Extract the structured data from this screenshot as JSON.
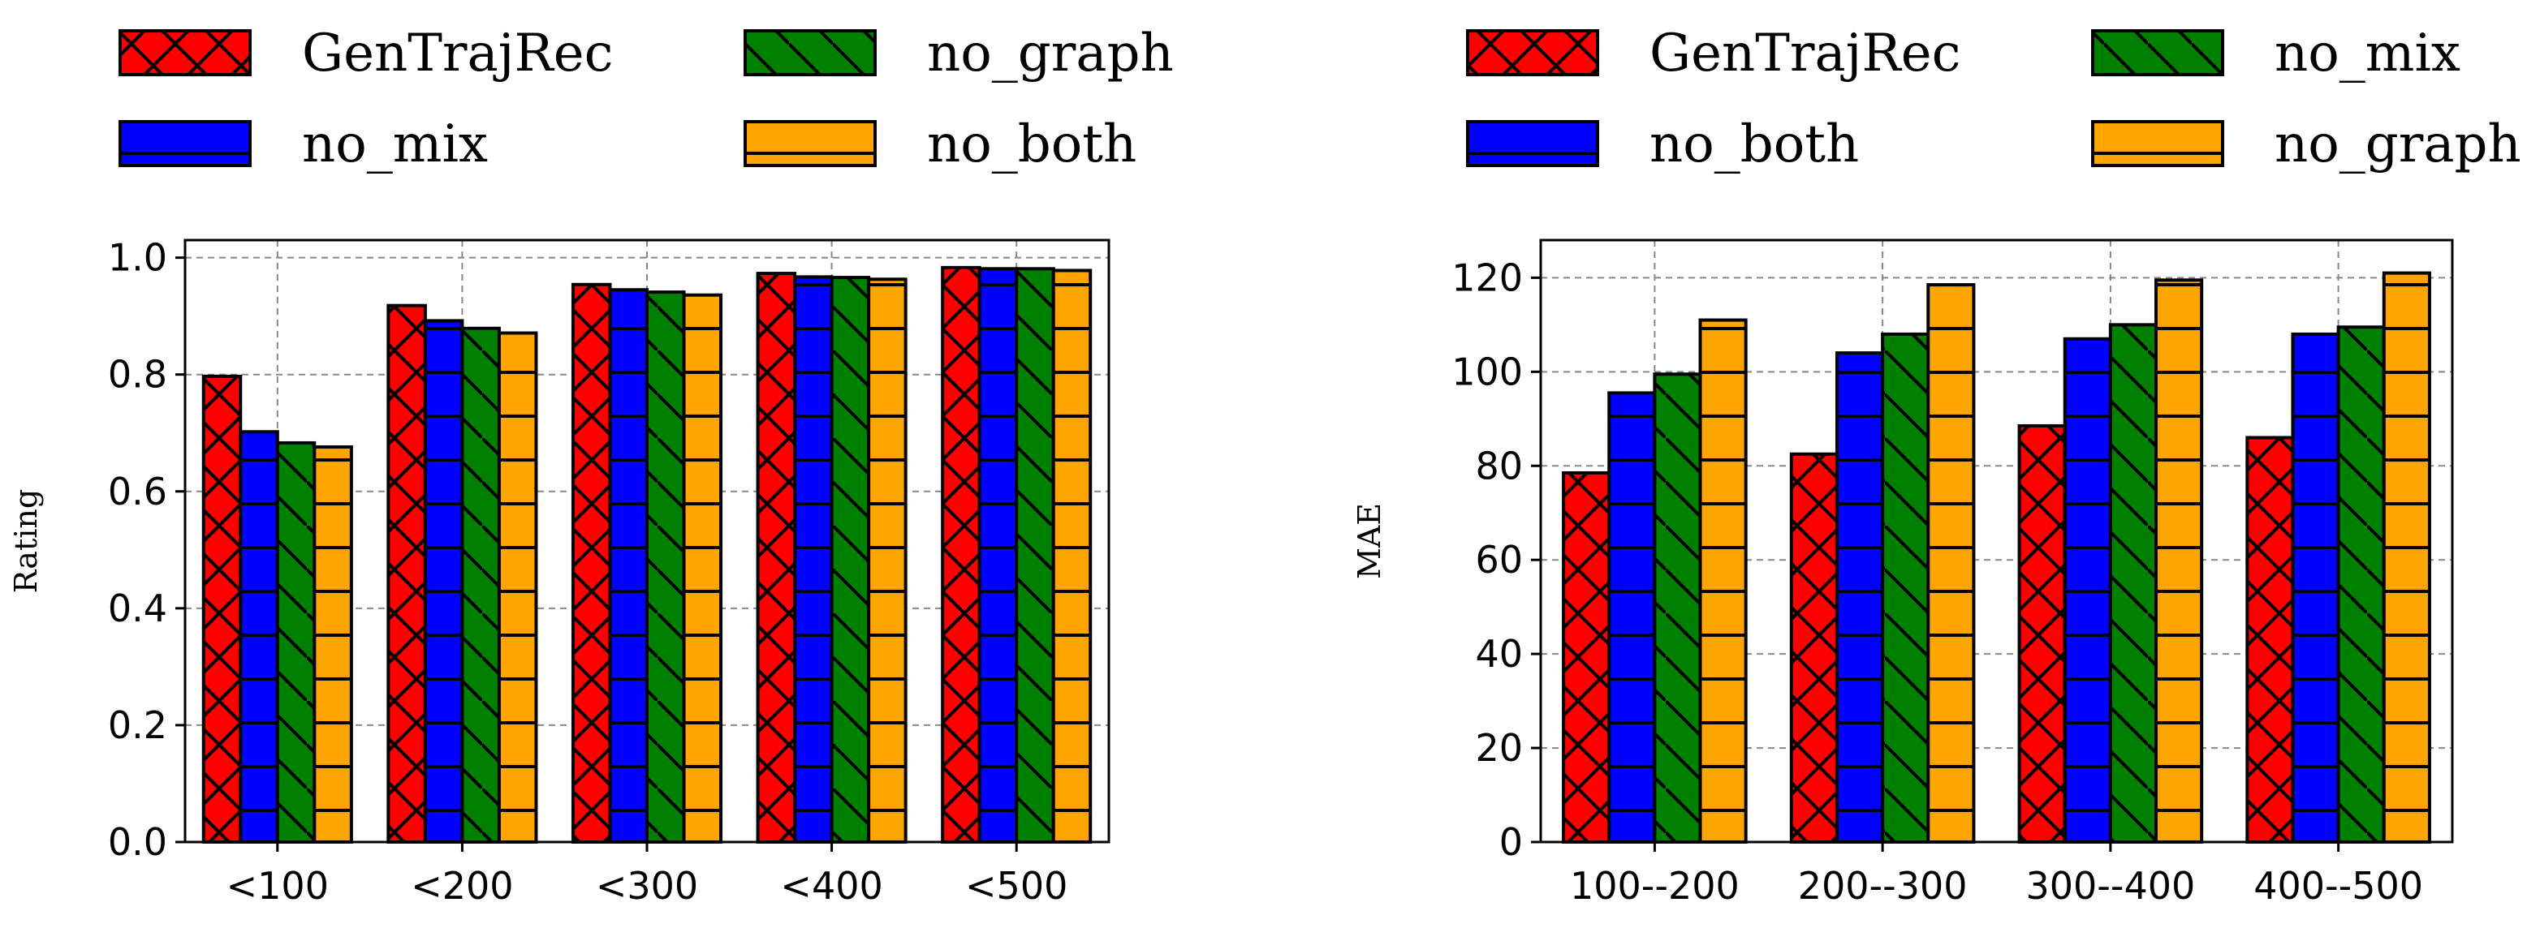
{
  "chart_data": [
    {
      "type": "bar",
      "title": "",
      "xlabel": "",
      "ylabel": "Rating",
      "categories": [
        "<100",
        "<200",
        "<300",
        "<400",
        "<500"
      ],
      "ylim": [
        0,
        1.03
      ],
      "yticks": [
        0.0,
        0.2,
        0.4,
        0.6,
        0.8,
        1.0
      ],
      "ytick_labels": [
        "0.0",
        "0.2",
        "0.4",
        "0.6",
        "0.8",
        "1.0"
      ],
      "grid": true,
      "legend_position": "top",
      "series": [
        {
          "name": "GenTrajRec",
          "color": "#ff0000",
          "hatch": "x",
          "values": [
            0.797,
            0.918,
            0.954,
            0.973,
            0.983
          ]
        },
        {
          "name": "no_mix",
          "color": "#0000ff",
          "hatch": "+",
          "values": [
            0.702,
            0.892,
            0.945,
            0.967,
            0.981
          ]
        },
        {
          "name": "no_graph",
          "color": "#008000",
          "hatch": "\\",
          "values": [
            0.683,
            0.879,
            0.941,
            0.966,
            0.981
          ]
        },
        {
          "name": "no_both",
          "color": "#ffa500",
          "hatch": "+",
          "values": [
            0.676,
            0.871,
            0.936,
            0.963,
            0.978
          ]
        }
      ],
      "legend": [
        {
          "label": "GenTrajRec",
          "color": "#ff0000",
          "hatch": "x"
        },
        {
          "label": "no_graph",
          "color": "#008000",
          "hatch": "\\"
        },
        {
          "label": "no_mix",
          "color": "#0000ff",
          "hatch": "+"
        },
        {
          "label": "no_both",
          "color": "#ffa500",
          "hatch": "+"
        }
      ]
    },
    {
      "type": "bar",
      "title": "",
      "xlabel": "",
      "ylabel": "MAE",
      "categories": [
        "100--200",
        "200--300",
        "300--400",
        "400--500"
      ],
      "ylim": [
        0,
        128
      ],
      "yticks": [
        0,
        20,
        40,
        60,
        80,
        100,
        120
      ],
      "ytick_labels": [
        "0",
        "20",
        "40",
        "60",
        "80",
        "100",
        "120"
      ],
      "grid": true,
      "legend_position": "top",
      "series": [
        {
          "name": "GenTrajRec",
          "color": "#ff0000",
          "hatch": "x",
          "values": [
            78.5,
            82.5,
            88.5,
            86
          ]
        },
        {
          "name": "no_both",
          "color": "#0000ff",
          "hatch": "+",
          "values": [
            95.5,
            104,
            107,
            108
          ]
        },
        {
          "name": "no_mix",
          "color": "#008000",
          "hatch": "\\",
          "values": [
            99.5,
            108,
            110,
            109.5
          ]
        },
        {
          "name": "no_graph",
          "color": "#ffa500",
          "hatch": "+",
          "values": [
            111,
            118.5,
            119.5,
            121
          ]
        }
      ],
      "legend": [
        {
          "label": "GenTrajRec",
          "color": "#ff0000",
          "hatch": "x"
        },
        {
          "label": "no_mix",
          "color": "#008000",
          "hatch": "\\"
        },
        {
          "label": "no_both",
          "color": "#0000ff",
          "hatch": "+"
        },
        {
          "label": "no_graph",
          "color": "#ffa500",
          "hatch": "+"
        }
      ]
    }
  ]
}
